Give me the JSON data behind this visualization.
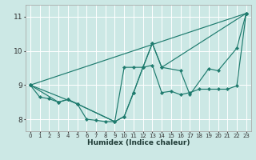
{
  "xlabel": "Humidex (Indice chaleur)",
  "xlim": [
    -0.5,
    23.5
  ],
  "ylim": [
    7.65,
    11.35
  ],
  "yticks": [
    8,
    9,
    10,
    11
  ],
  "xticks": [
    0,
    1,
    2,
    3,
    4,
    5,
    6,
    7,
    8,
    9,
    10,
    11,
    12,
    13,
    14,
    15,
    16,
    17,
    18,
    19,
    20,
    21,
    22,
    23
  ],
  "bg_color": "#cce8e5",
  "line_color": "#1e7b6e",
  "grid_color": "#ffffff",
  "lines": [
    {
      "x": [
        0,
        1,
        2,
        3,
        4,
        5,
        6,
        7,
        8,
        9,
        10,
        11,
        12,
        13,
        14,
        15,
        16,
        17,
        18,
        19,
        20,
        21,
        22,
        23
      ],
      "y": [
        9.0,
        8.65,
        8.6,
        8.5,
        8.58,
        8.45,
        8.0,
        7.97,
        7.93,
        7.93,
        8.08,
        8.78,
        9.52,
        9.58,
        8.78,
        8.82,
        8.72,
        8.78,
        8.88,
        8.88,
        8.88,
        8.88,
        8.98,
        11.1
      ]
    },
    {
      "x": [
        0,
        3,
        4,
        5,
        9,
        10,
        11,
        12,
        13,
        14,
        16,
        17,
        19,
        20,
        22,
        23
      ],
      "y": [
        9.0,
        8.5,
        8.58,
        8.45,
        7.93,
        9.52,
        9.52,
        9.52,
        10.22,
        9.52,
        9.42,
        8.72,
        9.48,
        9.42,
        10.08,
        11.1
      ]
    },
    {
      "x": [
        0,
        5,
        9,
        10,
        11,
        12,
        13,
        14,
        23
      ],
      "y": [
        9.0,
        8.45,
        7.93,
        8.08,
        8.78,
        9.52,
        10.22,
        9.52,
        11.1
      ]
    },
    {
      "x": [
        0,
        23
      ],
      "y": [
        9.0,
        11.1
      ]
    }
  ]
}
